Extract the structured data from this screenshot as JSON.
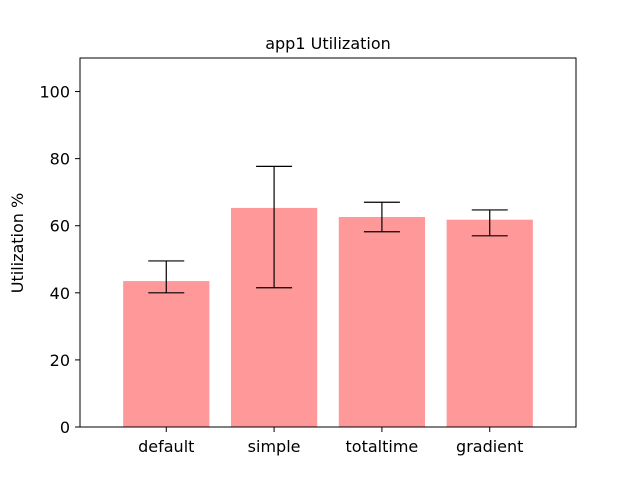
{
  "chart_data": {
    "type": "bar",
    "title": "app1 Utilization",
    "xlabel": "",
    "ylabel": "Utilization %",
    "categories": [
      "default",
      "simple",
      "totaltime",
      "gradient"
    ],
    "values": [
      43.5,
      65.3,
      62.6,
      61.8
    ],
    "error_low": [
      40.0,
      41.5,
      58.2,
      57.0
    ],
    "error_high": [
      49.5,
      77.7,
      67.0,
      64.7
    ],
    "ylim": [
      0,
      110
    ],
    "yticks": [
      0,
      20,
      40,
      60,
      80,
      100
    ],
    "grid": false,
    "bar_color": "#ff9999",
    "error_color": "#000000"
  }
}
